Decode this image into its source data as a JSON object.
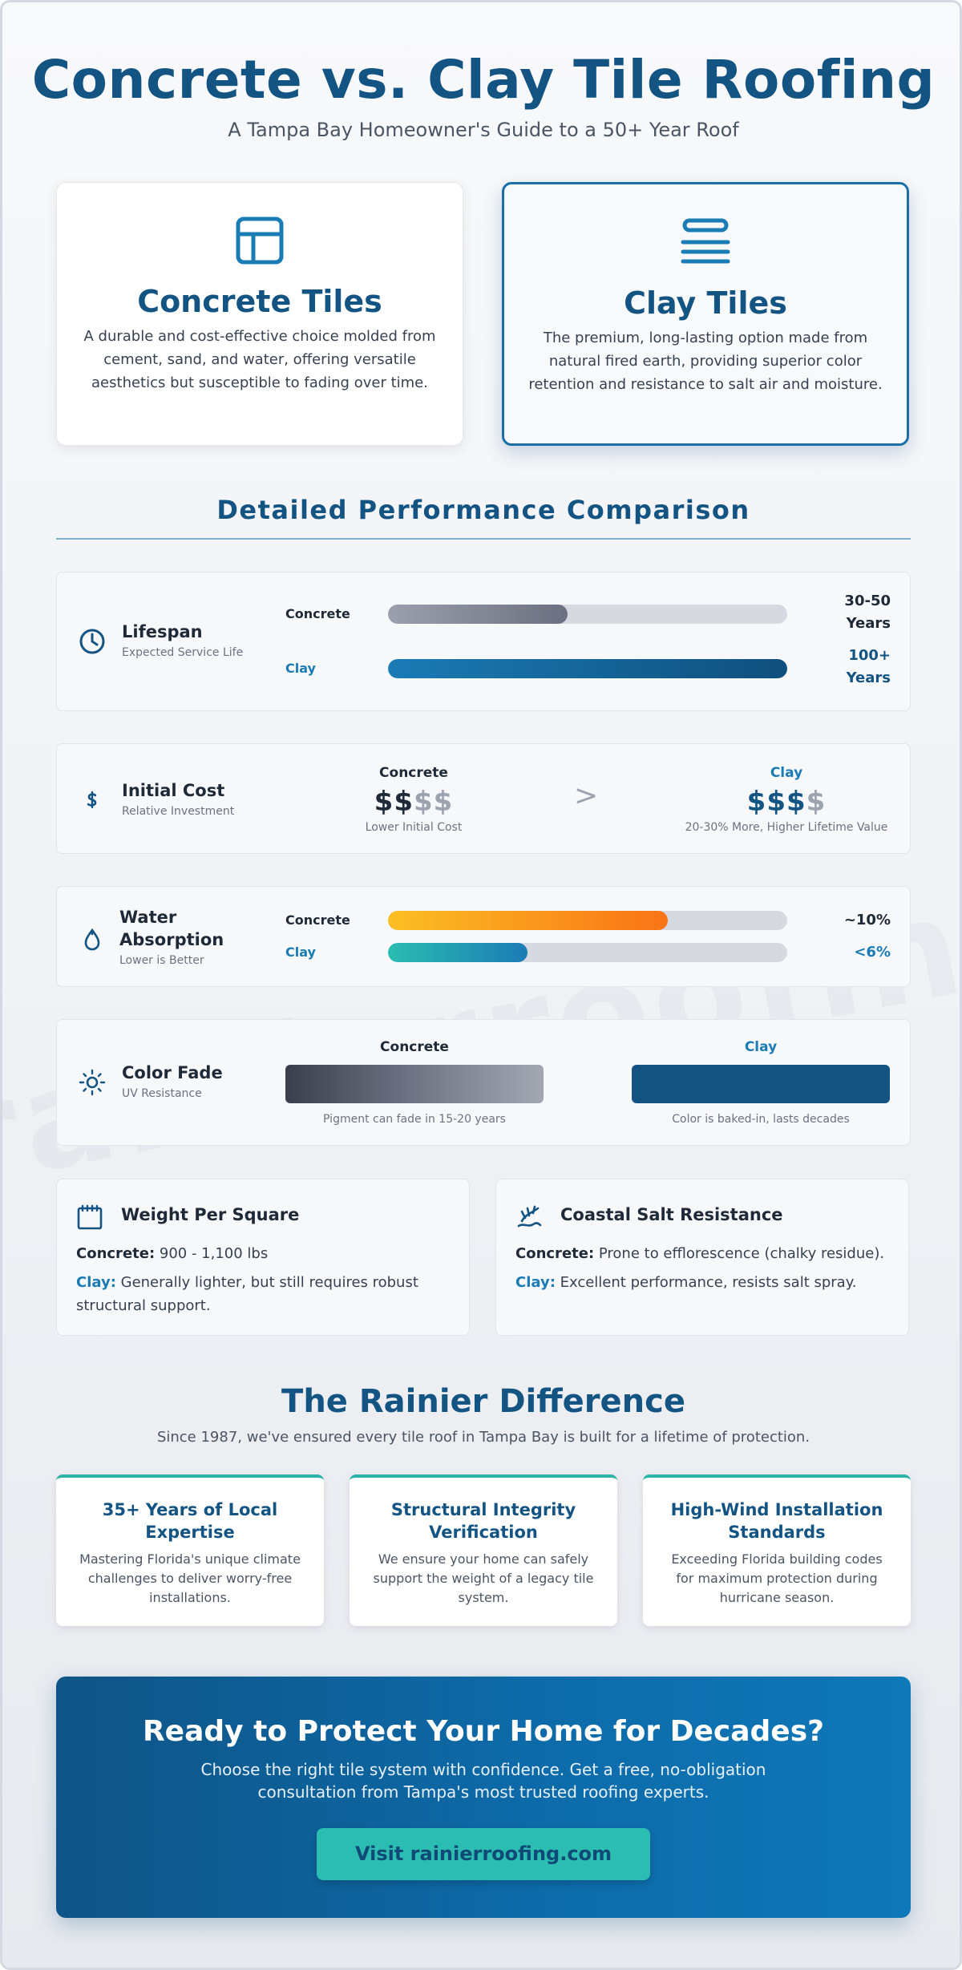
{
  "header": {
    "title": "Concrete vs. Clay Tile Roofing",
    "subtitle": "A Tampa Bay Homeowner's Guide to a 50+ Year Roof"
  },
  "watermark": "rainierroofing.com",
  "types": {
    "concrete": {
      "icon": "grid-tile-icon",
      "title": "Concrete Tiles",
      "description": "A durable and cost-effective choice molded from cement, sand, and water, offering versatile aesthetics but susceptible to fading over time."
    },
    "clay": {
      "icon": "stacked-layers-icon",
      "title": "Clay Tiles",
      "description": "The premium, long-lasting option made from natural fired earth, providing superior color retention and resistance to salt air and moisture."
    }
  },
  "comparison": {
    "title": "Detailed Performance Comparison",
    "concrete_label": "Concrete",
    "clay_label": "Clay",
    "lifespan": {
      "icon": "clock-icon",
      "title": "Lifespan",
      "subtitle": "Expected Service Life",
      "concrete_fraction": 0.45,
      "clay_fraction": 1.0,
      "concrete_value_line1": "30-50",
      "concrete_value_line2": "Years",
      "clay_value_line1": "100+",
      "clay_value_line2": "Years"
    },
    "cost": {
      "icon": "dollar-icon",
      "title": "Initial Cost",
      "subtitle": "Relative Investment",
      "concrete_active": "$$",
      "concrete_inactive": "$$",
      "concrete_note": "Lower Initial Cost",
      "comparator": ">",
      "clay_active": "$$$",
      "clay_inactive": "$",
      "clay_note": "20-30% More, Higher Lifetime Value"
    },
    "water": {
      "icon": "water-drop-icon",
      "title_line1": "Water",
      "title_line2": "Absorption",
      "subtitle": "Lower is Better",
      "concrete_fraction": 0.7,
      "clay_fraction": 0.35,
      "concrete_value": "~10%",
      "clay_value": "<6%"
    },
    "color_fade": {
      "icon": "sun-icon",
      "title": "Color Fade",
      "subtitle": "UV Resistance",
      "concrete_note": "Pigment can fade in 15-20 years",
      "clay_note": "Color is baked-in, lasts decades"
    }
  },
  "info": {
    "weight": {
      "icon": "weight-calendar-icon",
      "title": "Weight Per Square",
      "concrete_lead": "Concrete:",
      "concrete_text": " 900 - 1,100 lbs",
      "clay_lead": "Clay:",
      "clay_text": " Generally lighter, but still requires robust structural support."
    },
    "salt": {
      "icon": "coastal-wave-icon",
      "title": "Coastal Salt Resistance",
      "concrete_lead": "Concrete:",
      "concrete_text": " Prone to efflorescence (chalky residue).",
      "clay_lead": "Clay:",
      "clay_text": " Excellent performance, resists salt spray."
    }
  },
  "difference": {
    "title": "The Rainier Difference",
    "subtitle": "Since 1987, we've ensured every tile roof in Tampa Bay is built for a lifetime of protection.",
    "cards": [
      {
        "title": "35+ Years of Local Expertise",
        "text": "Mastering Florida's unique climate challenges to deliver worry-free installations."
      },
      {
        "title": "Structural Integrity Verification",
        "text": "We ensure your home can safely support the weight of a legacy tile system."
      },
      {
        "title": "High-Wind Installation Standards",
        "text": "Exceeding Florida building codes for maximum protection during hurricane season."
      }
    ]
  },
  "cta": {
    "title": "Ready to Protect Your Home for Decades?",
    "text": "Choose the right tile system with confidence. Get a free, no-obligation consultation from Tampa's most trusted roofing experts.",
    "button": "Visit rainierroofing.com"
  },
  "colors": {
    "primary": "#135483",
    "accent": "#1b7bb5",
    "teal": "#2bbdb1",
    "amber": "#fbbf24",
    "orange": "#f97316"
  }
}
